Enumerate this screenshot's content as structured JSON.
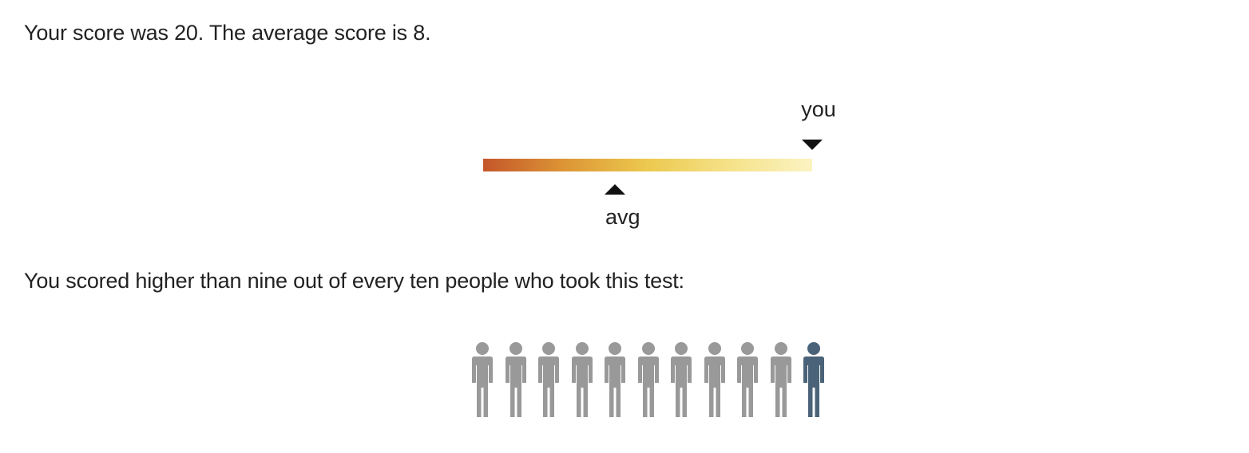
{
  "summary_text": "Your score was 20. The average score is 8.",
  "comparison_text": "You scored higher than nine out of every ten people who took this test:",
  "scale": {
    "min": 0,
    "max": 20,
    "you_value": 20,
    "avg_value": 8,
    "you_label": "you",
    "avg_label": "avg",
    "gradient_colors": [
      "#c4562a",
      "#dd9635",
      "#ecc94f",
      "#f5e289",
      "#fbf3c2"
    ]
  },
  "people": {
    "total": 10,
    "others_color": "#999999",
    "you_color": "#4a6378",
    "icon": "person-icon",
    "items": [
      {
        "kind": "other"
      },
      {
        "kind": "other"
      },
      {
        "kind": "other"
      },
      {
        "kind": "other"
      },
      {
        "kind": "other"
      },
      {
        "kind": "other"
      },
      {
        "kind": "other"
      },
      {
        "kind": "other"
      },
      {
        "kind": "other"
      },
      {
        "kind": "other"
      },
      {
        "kind": "you"
      }
    ]
  }
}
